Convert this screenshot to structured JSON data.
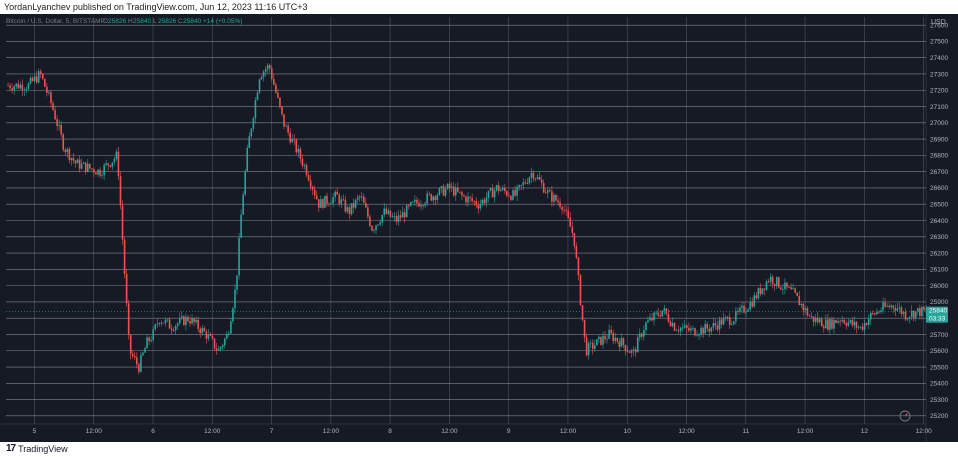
{
  "published": "YordanLyanchev published on TradingView.com, Jun 12, 2023 11:16 UTC+3",
  "header": {
    "symbol": "Bitcoin / U.S. Dollar, 5, BITSTAMP",
    "ohlc": [
      {
        "label": "O",
        "value": "25826"
      },
      {
        "label": "H",
        "value": "25840"
      },
      {
        "label": "L",
        "value": "25826"
      },
      {
        "label": "C",
        "value": "25840"
      }
    ],
    "change": "+14 (+0.05%)"
  },
  "price_tag": {
    "price": "25840",
    "countdown": "03:33"
  },
  "footer": {
    "brand": "TradingView",
    "logo_icon": "tradingview-logo-icon"
  },
  "colors": {
    "background": "#161a25",
    "grid": "#9598a1",
    "up": "#26a69a",
    "down": "#ef5350",
    "axis_text": "#b2b5be"
  },
  "chart_data": {
    "type": "candlestick",
    "currency": "USD",
    "ylim": [
      25150,
      27650
    ],
    "y_ticks": [
      25200,
      25300,
      25400,
      25500,
      25600,
      25700,
      25800,
      25900,
      26000,
      26100,
      26200,
      26300,
      26400,
      26500,
      26600,
      26700,
      26800,
      26900,
      27000,
      27100,
      27200,
      27300,
      27400,
      27500,
      27600
    ],
    "x_ticks": [
      "5",
      "12:00",
      "6",
      "12:00",
      "7",
      "12:00",
      "8",
      "12:00",
      "9",
      "12:00",
      "10",
      "12:00",
      "11",
      "12:00",
      "12",
      "12:00"
    ],
    "x_tick_days": [
      0,
      0.5,
      1,
      1.5,
      2,
      2.5,
      3,
      3.5,
      4,
      4.5,
      5,
      5.5,
      6,
      6.5,
      7,
      7.5
    ],
    "x_range_days": [
      -0.24,
      7.52
    ],
    "price_path_days": [
      -0.24,
      -0.05,
      0.05,
      0.15,
      0.25,
      0.35,
      0.55,
      0.7,
      0.8,
      0.88,
      0.95,
      1.0,
      1.05,
      1.15,
      1.3,
      1.45,
      1.55,
      1.63,
      1.7,
      1.75,
      1.8,
      1.9,
      1.98,
      2.1,
      2.2,
      2.3,
      2.4,
      2.55,
      2.65,
      2.75,
      2.85,
      2.95,
      3.05,
      3.2,
      3.35,
      3.5,
      3.6,
      3.75,
      3.9,
      4.05,
      4.2,
      4.35,
      4.45,
      4.55,
      4.65,
      4.75,
      4.85,
      4.95,
      5.05,
      5.15,
      5.3,
      5.4,
      5.55,
      5.7,
      5.8,
      5.9,
      6.05,
      6.2,
      6.4,
      6.55,
      6.7,
      6.8,
      6.9,
      6.97,
      7.05,
      7.15,
      7.25,
      7.35,
      7.45
    ],
    "price_path_values": [
      27230,
      27230,
      27300,
      27100,
      26850,
      26750,
      26700,
      26800,
      25600,
      25500,
      25650,
      25700,
      25800,
      25750,
      25800,
      25700,
      25600,
      25700,
      26000,
      26500,
      26850,
      27300,
      27350,
      27000,
      26850,
      26700,
      26500,
      26550,
      26450,
      26550,
      26350,
      26450,
      26400,
      26500,
      26550,
      26600,
      26550,
      26500,
      26600,
      26550,
      26700,
      26550,
      26500,
      26300,
      25600,
      25650,
      25700,
      25650,
      25580,
      25760,
      25850,
      25750,
      25720,
      25740,
      25780,
      25800,
      25900,
      26050,
      25950,
      25800,
      25760,
      25800,
      25760,
      25740,
      25810,
      25860,
      25880,
      25820,
      25840
    ],
    "last_price": 25840,
    "last_price_change": "+14 (+0.05%)"
  }
}
